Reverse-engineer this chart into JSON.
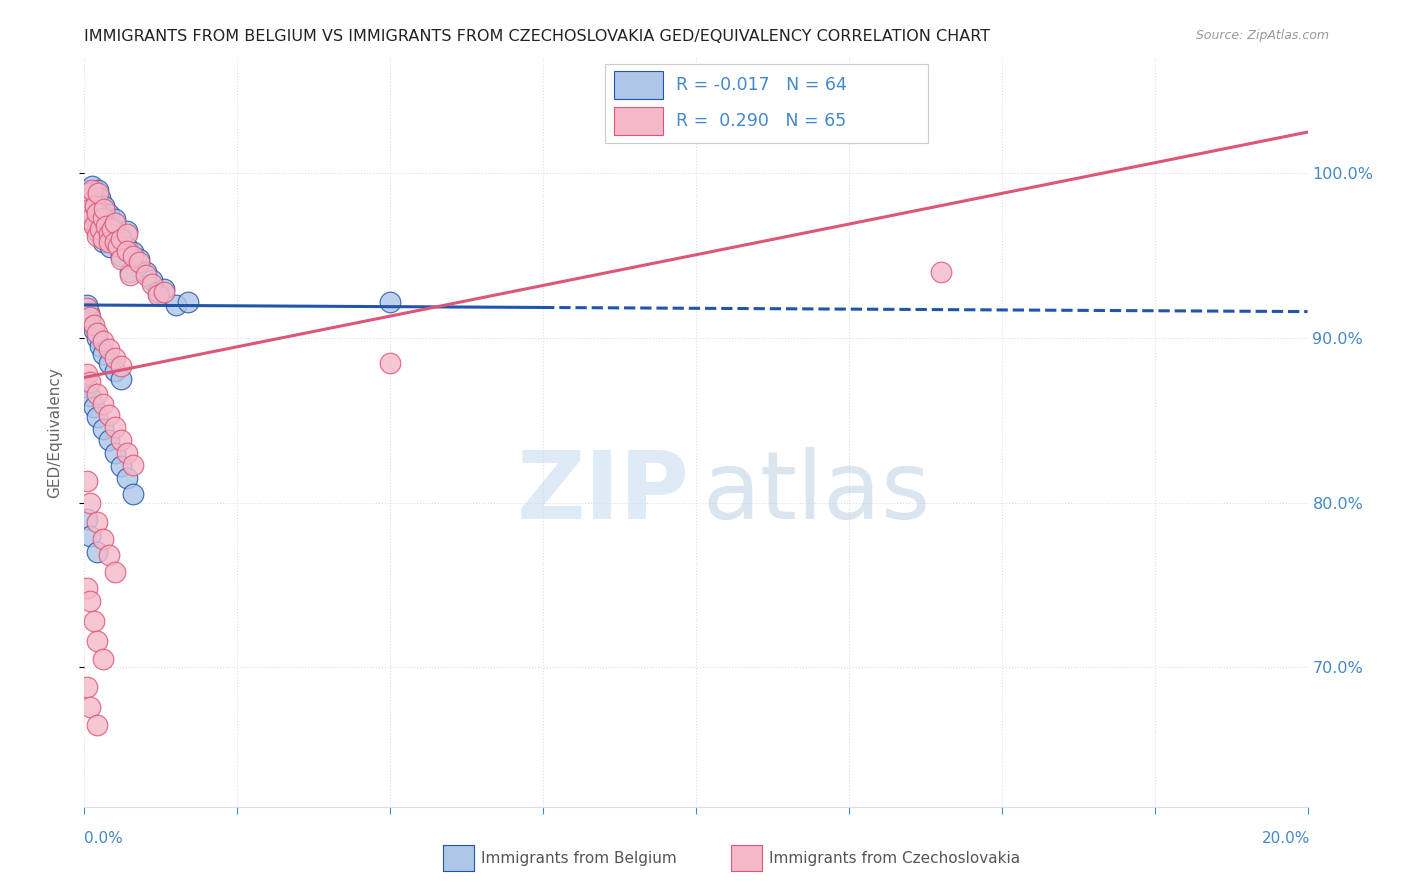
{
  "title": "IMMIGRANTS FROM BELGIUM VS IMMIGRANTS FROM CZECHOSLOVAKIA GED/EQUIVALENCY CORRELATION CHART",
  "source_text": "Source: ZipAtlas.com",
  "ylabel": "GED/Equivalency",
  "y_ticks_right": [
    0.7,
    0.8,
    0.9,
    1.0
  ],
  "y_tick_labels_right": [
    "70.0%",
    "80.0%",
    "90.0%",
    "100.0%"
  ],
  "xlim": [
    0.0,
    0.2
  ],
  "ylim": [
    0.615,
    1.07
  ],
  "legend_R_belgium": "-0.017",
  "legend_N_belgium": "64",
  "legend_R_czech": "0.290",
  "legend_N_czech": "65",
  "color_belgium": "#aec6e8",
  "color_czech": "#f4b8c8",
  "trend_color_belgium": "#2255aa",
  "trend_color_czech": "#dd5577",
  "background_color": "#ffffff",
  "axis_color": "#4488cc",
  "grid_color": "#dddddd",
  "watermark_zip_color": "#c8ddf0",
  "watermark_atlas_color": "#b8cce0",
  "trend_b_x0": 0.0,
  "trend_b_y0": 0.92,
  "trend_b_x1": 0.2,
  "trend_b_y1": 0.916,
  "trend_b_dash_start": 0.075,
  "trend_c_x0": 0.0,
  "trend_c_y0": 0.876,
  "trend_c_x1": 0.2,
  "trend_c_y1": 1.025,
  "belgium_scatter_x": [
    0.0005,
    0.0008,
    0.001,
    0.001,
    0.0012,
    0.0015,
    0.0015,
    0.0018,
    0.002,
    0.002,
    0.002,
    0.0022,
    0.0025,
    0.0025,
    0.003,
    0.003,
    0.003,
    0.0032,
    0.0035,
    0.004,
    0.004,
    0.004,
    0.0042,
    0.0045,
    0.005,
    0.005,
    0.0055,
    0.006,
    0.006,
    0.007,
    0.007,
    0.0075,
    0.008,
    0.009,
    0.01,
    0.011,
    0.012,
    0.013,
    0.015,
    0.017,
    0.0005,
    0.0008,
    0.001,
    0.0015,
    0.002,
    0.0025,
    0.003,
    0.004,
    0.005,
    0.006,
    0.0005,
    0.001,
    0.0015,
    0.002,
    0.003,
    0.004,
    0.005,
    0.006,
    0.007,
    0.008,
    0.0005,
    0.001,
    0.002,
    0.05
  ],
  "belgium_scatter_y": [
    0.99,
    0.985,
    0.98,
    0.975,
    0.992,
    0.97,
    0.988,
    0.982,
    0.978,
    0.972,
    0.965,
    0.99,
    0.968,
    0.985,
    0.975,
    0.962,
    0.958,
    0.98,
    0.97,
    0.965,
    0.96,
    0.975,
    0.955,
    0.968,
    0.972,
    0.96,
    0.958,
    0.962,
    0.95,
    0.965,
    0.955,
    0.94,
    0.952,
    0.948,
    0.94,
    0.935,
    0.928,
    0.93,
    0.92,
    0.922,
    0.92,
    0.915,
    0.91,
    0.905,
    0.9,
    0.895,
    0.89,
    0.885,
    0.88,
    0.875,
    0.87,
    0.865,
    0.858,
    0.852,
    0.845,
    0.838,
    0.83,
    0.822,
    0.815,
    0.805,
    0.79,
    0.78,
    0.77,
    0.922
  ],
  "czech_scatter_x": [
    0.0005,
    0.0008,
    0.001,
    0.001,
    0.0012,
    0.0015,
    0.0018,
    0.002,
    0.002,
    0.0022,
    0.0025,
    0.003,
    0.003,
    0.0032,
    0.0035,
    0.004,
    0.004,
    0.0045,
    0.005,
    0.005,
    0.0055,
    0.006,
    0.006,
    0.007,
    0.007,
    0.0075,
    0.008,
    0.009,
    0.01,
    0.011,
    0.012,
    0.013,
    0.0005,
    0.001,
    0.0015,
    0.002,
    0.003,
    0.004,
    0.005,
    0.006,
    0.0005,
    0.001,
    0.002,
    0.003,
    0.004,
    0.005,
    0.006,
    0.007,
    0.008,
    0.0005,
    0.001,
    0.002,
    0.003,
    0.004,
    0.005,
    0.0005,
    0.001,
    0.0015,
    0.002,
    0.003,
    0.0005,
    0.001,
    0.002,
    0.05,
    0.14
  ],
  "czech_scatter_y": [
    0.988,
    0.982,
    0.978,
    0.972,
    0.99,
    0.968,
    0.98,
    0.976,
    0.962,
    0.988,
    0.966,
    0.973,
    0.96,
    0.978,
    0.968,
    0.963,
    0.958,
    0.966,
    0.97,
    0.958,
    0.956,
    0.96,
    0.948,
    0.963,
    0.953,
    0.938,
    0.95,
    0.946,
    0.938,
    0.933,
    0.926,
    0.928,
    0.918,
    0.913,
    0.908,
    0.903,
    0.898,
    0.893,
    0.888,
    0.883,
    0.878,
    0.873,
    0.866,
    0.86,
    0.853,
    0.846,
    0.838,
    0.83,
    0.823,
    0.813,
    0.8,
    0.788,
    0.778,
    0.768,
    0.758,
    0.748,
    0.74,
    0.728,
    0.716,
    0.705,
    0.688,
    0.676,
    0.665,
    0.885,
    0.94
  ]
}
